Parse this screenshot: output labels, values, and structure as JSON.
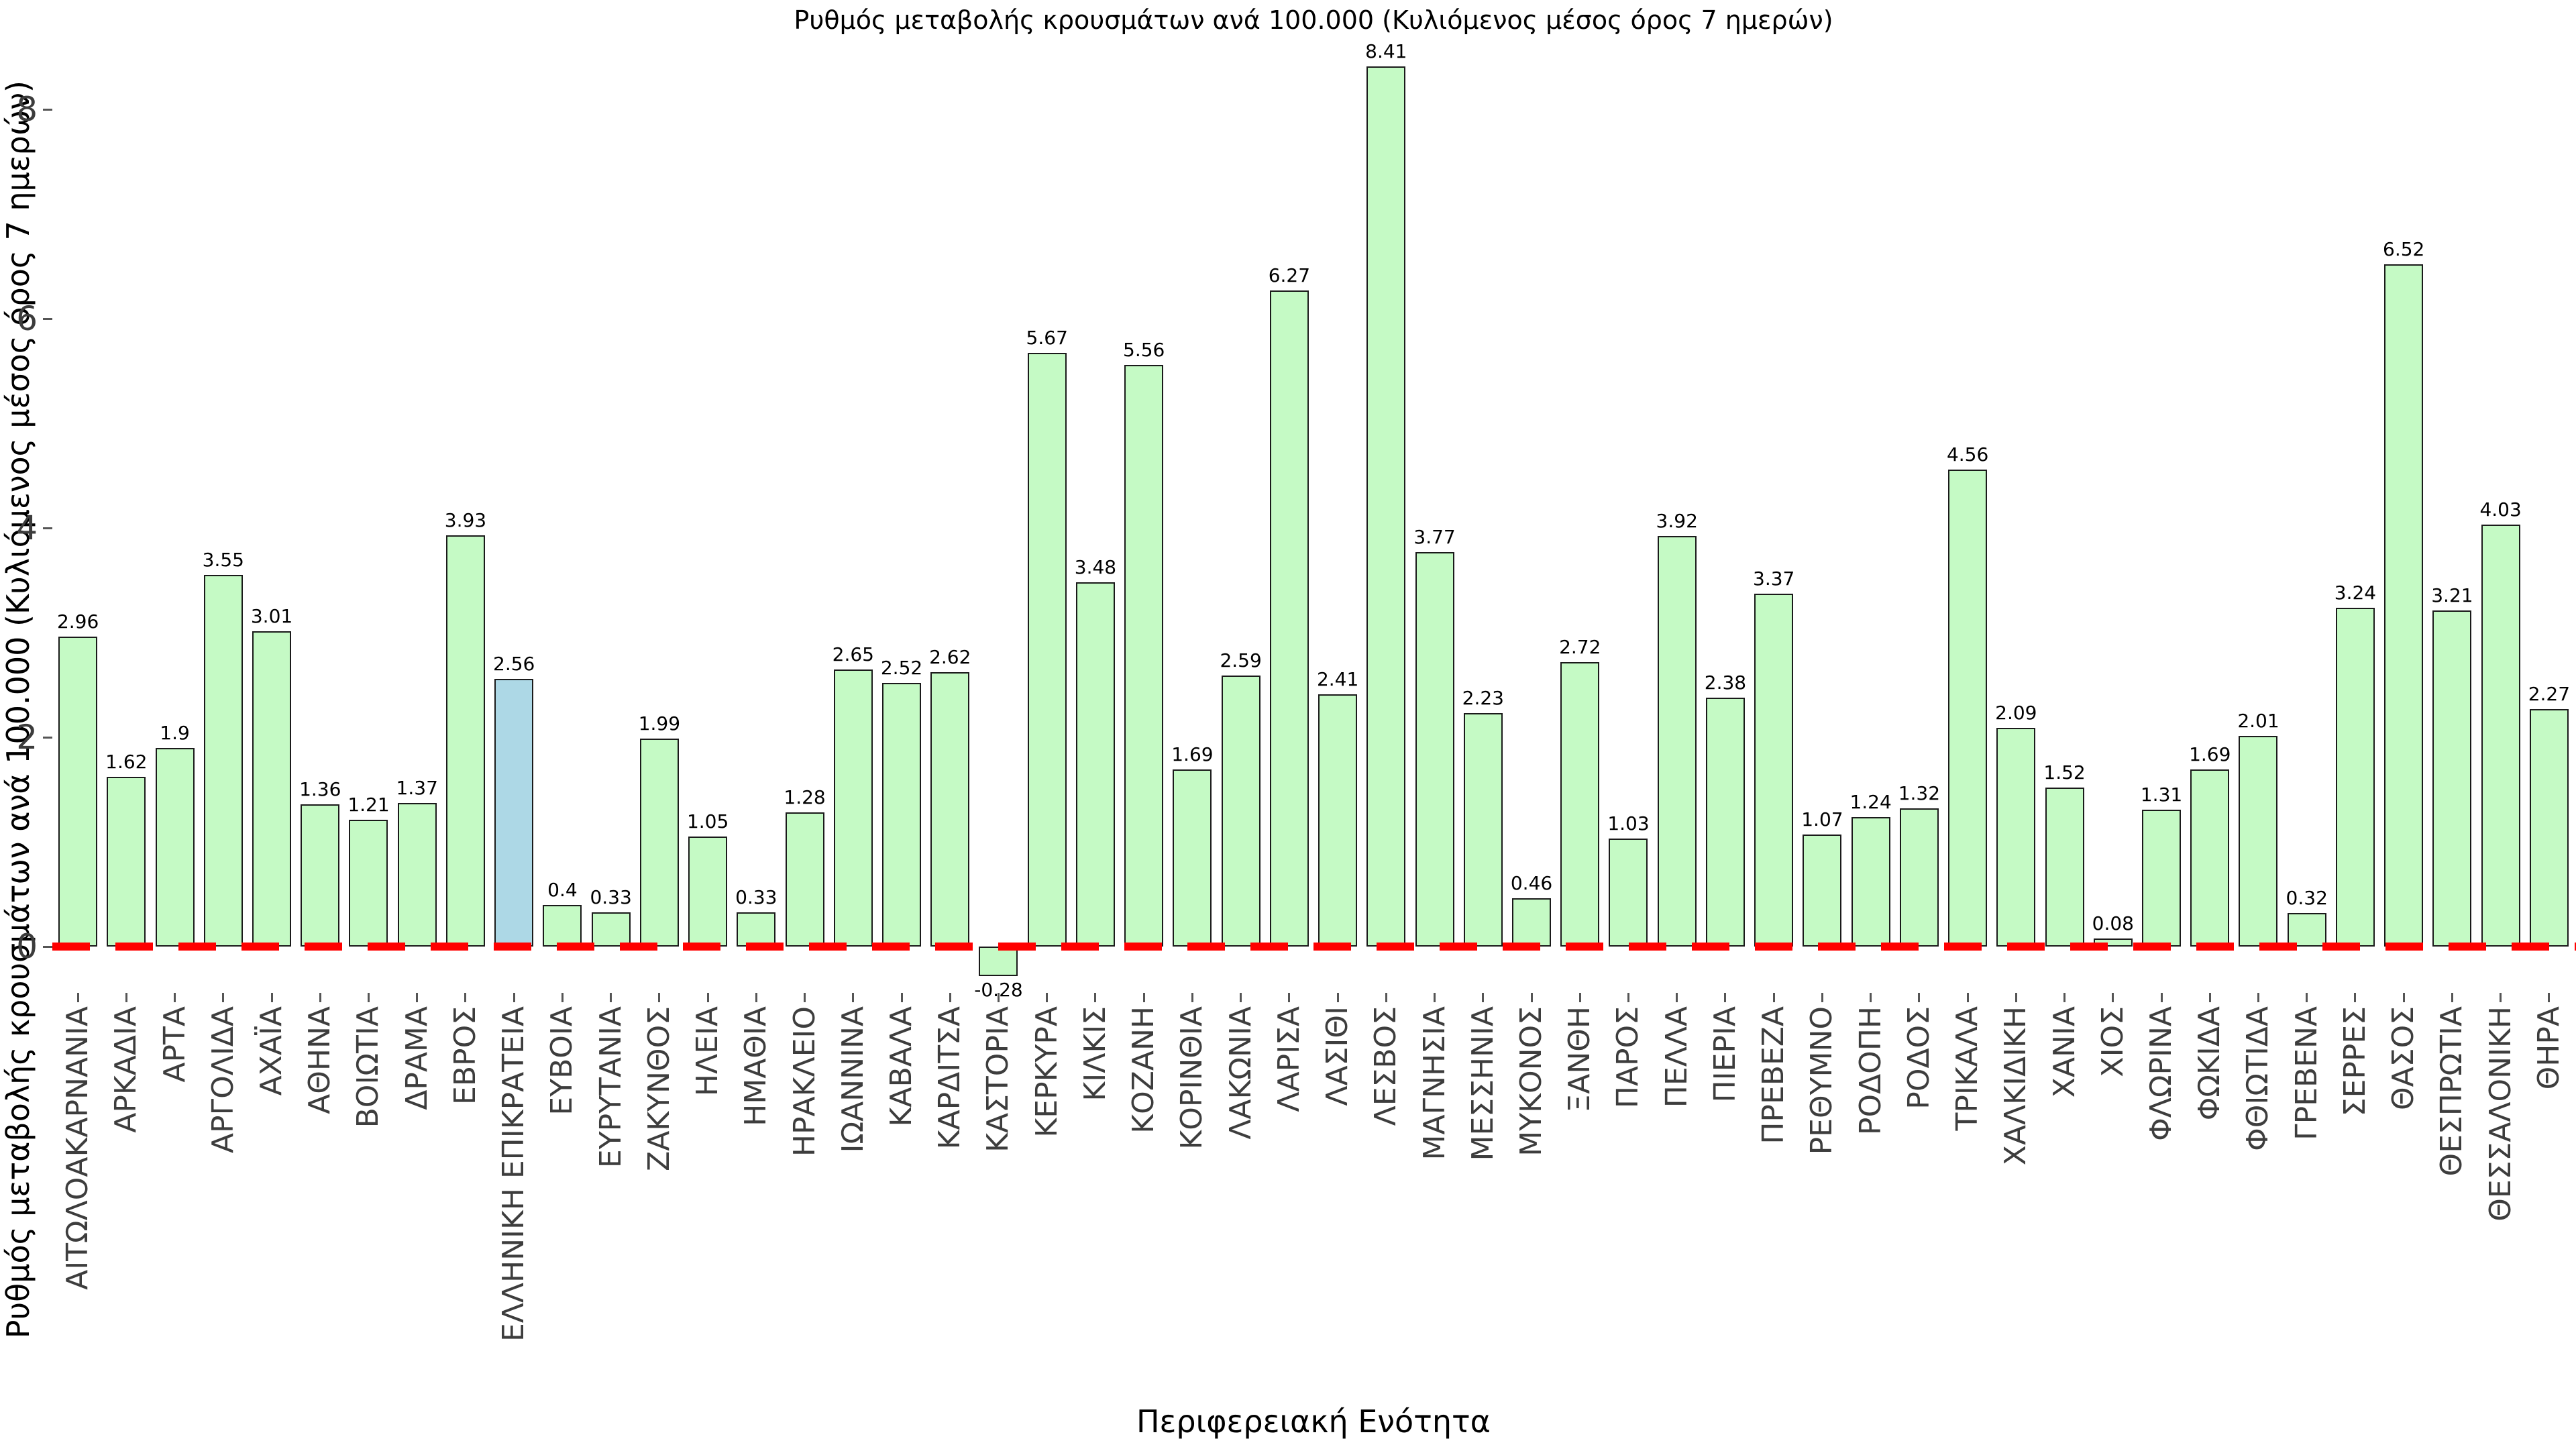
{
  "title": "Ρυθμός μεταβολής κρουσμάτων ανά 100.000 (Κυλιόμενος μέσος όρος 7 ημερών)",
  "x_axis_title": "Περιφερειακή Ενότητα",
  "y_axis_title": "Ρυθμός μεταβολής κρουσμάτων ανά 100.000 (Κυλιόμενος μέσος όρος 7 ημερών)",
  "chart_data": {
    "type": "bar",
    "title": "Ρυθμός μεταβολής κρουσμάτων ανά 100.000 (Κυλιόμενος μέσος όρος 7 ημερών)",
    "xlabel": "Περιφερειακή Ενότητα",
    "ylabel": "Ρυθμός μεταβολής κρουσμάτων ανά 100.000 (Κυλιόμενος μέσος όρος 7 ημερών)",
    "categories": [
      "ΑΙΤΩΛΟΑΚΑΡΝΑΝΙΑ",
      "ΑΡΚΑΔΙΑ",
      "ΑΡΤΑ",
      "ΑΡΓΟΛΙΔΑ",
      "ΑΧΑΪΑ",
      "ΑΘΗΝΑ",
      "ΒΟΙΩΤΙΑ",
      "ΔΡΑΜΑ",
      "ΕΒΡΟΣ",
      "ΕΛΛΗΝΙΚΗ ΕΠΙΚΡΑΤΕΙΑ",
      "ΕΥΒΟΙΑ",
      "ΕΥΡΥΤΑΝΙΑ",
      "ΖΑΚΥΝΘΟΣ",
      "ΗΛΕΙΑ",
      "ΗΜΑΘΙΑ",
      "ΗΡΑΚΛΕΙΟ",
      "ΙΩΑΝΝΙΝΑ",
      "ΚΑΒΑΛΑ",
      "ΚΑΡΔΙΤΣΑ",
      "ΚΑΣΤΟΡΙΑ",
      "ΚΕΡΚΥΡΑ",
      "ΚΙΛΚΙΣ",
      "ΚΟΖΑΝΗ",
      "ΚΟΡΙΝΘΙΑ",
      "ΛΑΚΩΝΙΑ",
      "ΛΑΡΙΣΑ",
      "ΛΑΣΙΘΙ",
      "ΛΕΣΒΟΣ",
      "ΜΑΓΝΗΣΙΑ",
      "ΜΕΣΣΗΝΙΑ",
      "ΜΥΚΟΝΟΣ",
      "ΞΑΝΘΗ",
      "ΠΑΡΟΣ",
      "ΠΕΛΛΑ",
      "ΠΙΕΡΙΑ",
      "ΠΡΕΒΕΖΑ",
      "ΡΕΘΥΜΝΟ",
      "ΡΟΔΟΠΗ",
      "ΡΟΔΟΣ",
      "ΤΡΙΚΑΛΑ",
      "ΧΑΛΚΙΔΙΚΗ",
      "ΧΑΝΙΑ",
      "ΧΙΟΣ",
      "ΦΛΩΡΙΝΑ",
      "ΦΩΚΙΔΑ",
      "ΦΘΙΩΤΙΔΑ",
      "ΓΡΕΒΕΝΑ",
      "ΣΕΡΡΕΣ",
      "ΘΑΣΟΣ",
      "ΘΕΣΠΡΩΤΙΑ",
      "ΘΕΣΣΑΛΟΝΙΚΗ",
      "ΘΗΡΑ"
    ],
    "values": [
      2.96,
      1.62,
      1.9,
      3.55,
      3.01,
      1.36,
      1.21,
      1.37,
      3.93,
      2.56,
      0.4,
      0.33,
      1.99,
      1.05,
      0.33,
      1.28,
      2.65,
      2.52,
      2.62,
      -0.28,
      5.67,
      3.48,
      5.56,
      1.69,
      2.59,
      6.27,
      2.41,
      8.41,
      3.77,
      2.23,
      0.46,
      2.72,
      1.03,
      3.92,
      2.38,
      3.37,
      1.07,
      1.24,
      1.32,
      4.56,
      2.09,
      1.52,
      0.08,
      1.31,
      1.69,
      2.01,
      0.32,
      3.24,
      6.52,
      3.21,
      4.03,
      2.27
    ],
    "value_labels": [
      "2.96",
      "1.62",
      "1.9",
      "3.55",
      "3.01",
      "1.36",
      "1.21",
      "1.37",
      "3.93",
      "2.56",
      "0.4",
      "0.33",
      "1.99",
      "1.05",
      "0.33",
      "1.28",
      "2.65",
      "2.52",
      "2.62",
      "-0.28",
      "5.67",
      "3.48",
      "5.56",
      "1.69",
      "2.59",
      "6.27",
      "2.41",
      "8.41",
      "3.77",
      "2.23",
      "0.46",
      "2.72",
      "1.03",
      "3.92",
      "2.38",
      "3.37",
      "1.07",
      "1.24",
      "1.32",
      "4.56",
      "2.09",
      "1.52",
      "0.08",
      "1.31",
      "1.69",
      "2.01",
      "0.32",
      "3.24",
      "6.52",
      "3.21",
      "4.03",
      "2.27"
    ],
    "highlight_category": "ΕΛΛΗΝΙΚΗ ΕΠΙΚΡΑΤΕΙΑ",
    "bar_color": "#c5fac5",
    "highlight_color": "#add8e6",
    "bar_edge_color": "#1a1a1a",
    "zero_line_color": "#ff0000",
    "zero_line_style": "dashed",
    "yticks": [
      0,
      2,
      4,
      6,
      8
    ],
    "ylim": [
      -0.44,
      9.05
    ],
    "grid": false,
    "legend": "none"
  }
}
